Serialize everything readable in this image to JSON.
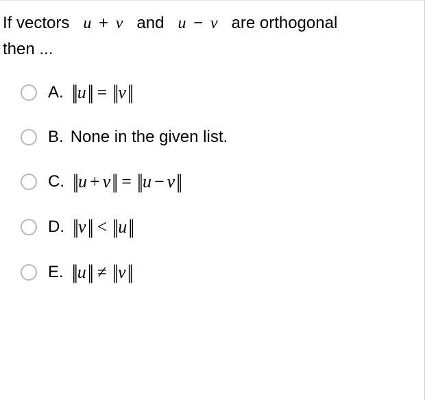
{
  "question": {
    "prefix": "If vectors",
    "expr1_u": "u",
    "expr1_op": "+",
    "expr1_v": "v",
    "mid": "and",
    "expr2_u": "u",
    "expr2_op": "−",
    "expr2_v": "v",
    "suffix": "are orthogonal",
    "line2": "then  ..."
  },
  "options": [
    {
      "letter": "A.",
      "type": "math",
      "left_inner": "u",
      "relation": "=",
      "right_inner": "v",
      "left_composite": false,
      "right_composite": false
    },
    {
      "letter": "B.",
      "type": "text",
      "text": " None in the given list."
    },
    {
      "letter": "C.",
      "type": "math",
      "left_a": "u",
      "left_op": "+",
      "left_b": "v",
      "relation": "=",
      "right_a": "u",
      "right_op": "−",
      "right_b": "v",
      "left_composite": true,
      "right_composite": true
    },
    {
      "letter": "D.",
      "type": "math",
      "left_inner": "v",
      "relation": "<",
      "right_inner": "u",
      "left_composite": false,
      "right_composite": false
    },
    {
      "letter": "E.",
      "type": "math",
      "left_inner": "u",
      "relation": "≠",
      "right_inner": "v",
      "left_composite": false,
      "right_composite": false
    }
  ],
  "style": {
    "text_color": "#000000",
    "radio_border": "#b8b8b8",
    "background": "#ffffff",
    "question_fontsize": 24,
    "option_fontsize": 24,
    "math_fontsize": 26
  },
  "norm_delim": "||"
}
